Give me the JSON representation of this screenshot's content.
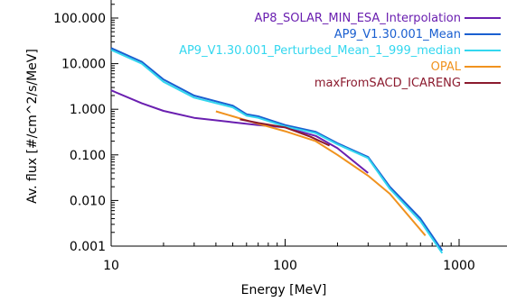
{
  "chart_data": {
    "type": "line",
    "title": "",
    "xlabel": "Energy [MeV]",
    "ylabel": "Av. flux [#/cm^2/s/MeV]",
    "xscale": "log",
    "yscale": "log",
    "xlim": [
      10,
      2000
    ],
    "ylim": [
      0.001,
      200
    ],
    "grid": false,
    "legend_position": "top-right",
    "x_ticks": [
      10,
      100,
      1000
    ],
    "x_tick_labels": [
      "10",
      "100",
      "1000"
    ],
    "y_ticks": [
      0.001,
      0.01,
      0.1,
      1,
      10,
      100
    ],
    "y_tick_labels": [
      "0.001",
      "0.010",
      "0.100",
      "1.000",
      "10.000",
      "100.000"
    ],
    "series": [
      {
        "name": "AP8_SOLAR_MIN_ESA_Interpolation",
        "color": "#6a1fb0",
        "x": [
          10,
          15,
          20,
          30,
          50,
          70,
          100,
          150,
          200,
          300
        ],
        "y": [
          2.6,
          1.35,
          0.92,
          0.65,
          0.52,
          0.45,
          0.4,
          0.26,
          0.14,
          0.04
        ]
      },
      {
        "name": "AP9_V1.30.001_Mean",
        "color": "#1a5fd0",
        "x": [
          10,
          15,
          20,
          30,
          50,
          60,
          70,
          100,
          150,
          200,
          300,
          400,
          600,
          800
        ],
        "y": [
          22,
          11,
          4.5,
          2.0,
          1.2,
          0.78,
          0.7,
          0.45,
          0.32,
          0.18,
          0.09,
          0.02,
          0.004,
          0.0008
        ]
      },
      {
        "name": "AP9_V1.30.001_Perturbed_Mean_1_999_median",
        "color": "#33d7ef",
        "x": [
          10,
          15,
          20,
          30,
          50,
          60,
          70,
          100,
          150,
          200,
          300,
          400,
          600,
          800
        ],
        "y": [
          20,
          10,
          4.0,
          1.8,
          1.1,
          0.72,
          0.65,
          0.42,
          0.3,
          0.17,
          0.085,
          0.018,
          0.0035,
          0.0007
        ]
      },
      {
        "name": "OPAL",
        "color": "#f0921e",
        "x": [
          40,
          50,
          70,
          100,
          150,
          200,
          300,
          400,
          640
        ],
        "y": [
          0.9,
          0.7,
          0.48,
          0.33,
          0.2,
          0.1,
          0.035,
          0.014,
          0.0017
        ]
      },
      {
        "name": "maxFromSACD_ICARENG",
        "color": "#8b1a2e",
        "x": [
          55,
          70,
          100,
          140,
          180
        ],
        "y": [
          0.6,
          0.5,
          0.4,
          0.25,
          0.16
        ]
      }
    ]
  }
}
